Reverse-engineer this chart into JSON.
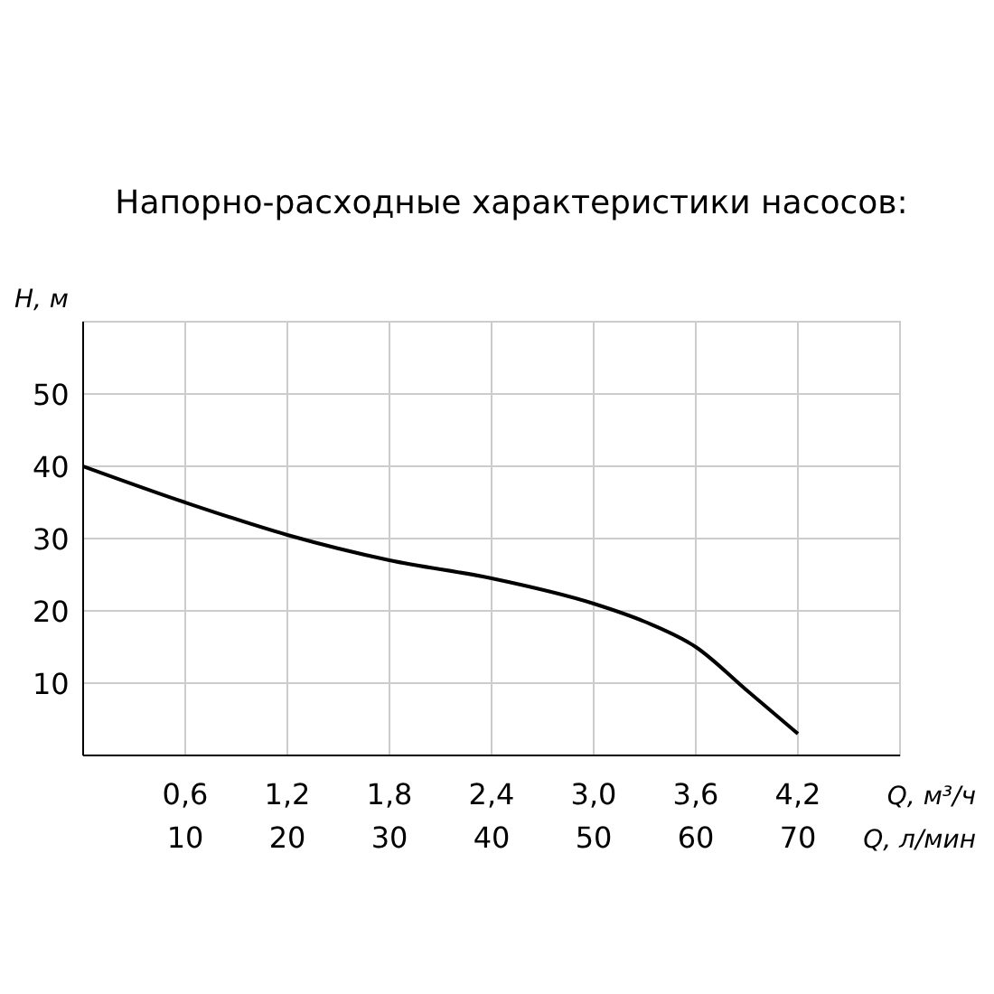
{
  "chart_data": {
    "type": "line",
    "title": "Напорно-расходные характеристики насосов:",
    "xlabel": "Q, м³/ч",
    "x2label": "Q, л/мин",
    "ylabel": "H, м",
    "x": [
      0,
      0.6,
      1.2,
      1.8,
      2.4,
      3.0,
      3.3,
      3.6,
      3.9,
      4.2
    ],
    "series": [
      {
        "color": "#000000",
        "values": [
          40,
          35,
          30.5,
          27,
          24.5,
          21,
          18.5,
          15,
          9,
          3
        ]
      }
    ],
    "xlim": [
      0,
      4.8
    ],
    "xticks": [
      {
        "value": 0.6,
        "label": "0,6"
      },
      {
        "value": 1.2,
        "label": "1,2"
      },
      {
        "value": 1.8,
        "label": "1,8"
      },
      {
        "value": 2.4,
        "label": "2,4"
      },
      {
        "value": 3.0,
        "label": "3,0"
      },
      {
        "value": 3.6,
        "label": "3,6"
      },
      {
        "value": 4.2,
        "label": "4,2"
      }
    ],
    "x2lim": [
      0,
      80
    ],
    "x2ticks": [
      10,
      20,
      30,
      40,
      50,
      60,
      70
    ],
    "ylim": [
      0,
      60
    ],
    "yticks": [
      10,
      20,
      30,
      40,
      50
    ],
    "grid": true,
    "line_style": "solid"
  }
}
